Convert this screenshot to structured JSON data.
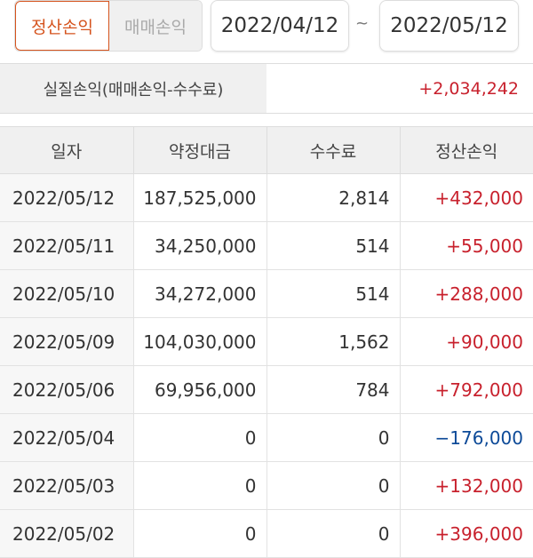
{
  "toggle": {
    "options": [
      {
        "label": "정산손익",
        "active": true
      },
      {
        "label": "매매손익",
        "active": false
      }
    ]
  },
  "period": {
    "start": "2022/04/12",
    "separator": "~",
    "end": "2022/05/12"
  },
  "summary": {
    "label": "실질손익(매매손익-수수료)",
    "value": "+2,034,242"
  },
  "colors": {
    "accent": "#d5531d",
    "positive": "#c8212d",
    "negative": "#0d4a98"
  },
  "table": {
    "headers": [
      "일자",
      "약정대금",
      "수수료",
      "정산손익"
    ],
    "rows": [
      [
        "2022/05/12",
        "187,525,000",
        "2,814",
        "+432,000"
      ],
      [
        "2022/05/11",
        "34,250,000",
        "514",
        "+55,000"
      ],
      [
        "2022/05/10",
        "34,272,000",
        "514",
        "+288,000"
      ],
      [
        "2022/05/09",
        "104,030,000",
        "1,562",
        "+90,000"
      ],
      [
        "2022/05/06",
        "69,956,000",
        "784",
        "+792,000"
      ],
      [
        "2022/05/04",
        "0",
        "0",
        "−176,000"
      ],
      [
        "2022/05/03",
        "0",
        "0",
        "+132,000"
      ],
      [
        "2022/05/02",
        "0",
        "0",
        "+396,000"
      ]
    ]
  }
}
